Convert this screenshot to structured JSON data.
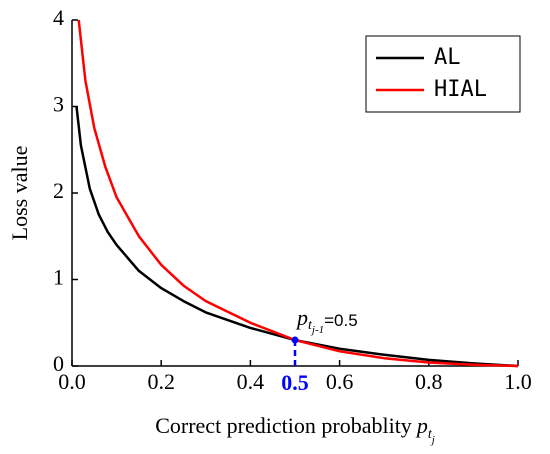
{
  "chart_data": {
    "type": "line",
    "xlabel": {
      "text": "Correct prediction probablity",
      "symbol": "p",
      "sub": "t",
      "subsub": "j"
    },
    "ylabel": "Loss value",
    "xlim": [
      0,
      1
    ],
    "ylim": [
      0,
      4
    ],
    "xticks": [
      {
        "value": 0,
        "label": "0.0"
      },
      0.2,
      0.4,
      0.6,
      0.8,
      {
        "value": 1,
        "label": "1.0"
      }
    ],
    "yticks": [
      0,
      1,
      2,
      3,
      4
    ],
    "legend": "top-right",
    "series": [
      {
        "name": "AL",
        "color": "#000000",
        "x": [
          0.01,
          0.02,
          0.04,
          0.06,
          0.08,
          0.1,
          0.15,
          0.2,
          0.25,
          0.3,
          0.4,
          0.5,
          0.6,
          0.7,
          0.8,
          0.9,
          1.0
        ],
        "values": [
          3,
          2.55,
          2.05,
          1.75,
          1.55,
          1.4,
          1.1,
          0.9,
          0.75,
          0.62,
          0.44,
          0.3,
          0.2,
          0.13,
          0.07,
          0.03,
          0
        ]
      },
      {
        "name": "HIAL",
        "color": "#ff0000",
        "x": [
          0.015,
          0.03,
          0.05,
          0.075,
          0.1,
          0.15,
          0.2,
          0.25,
          0.3,
          0.4,
          0.5,
          0.6,
          0.7,
          0.8,
          0.9,
          1.0
        ],
        "values": [
          4,
          3.3,
          2.75,
          2.3,
          1.95,
          1.5,
          1.17,
          0.93,
          0.75,
          0.5,
          0.3,
          0.17,
          0.09,
          0.04,
          0.015,
          0
        ]
      }
    ],
    "annotation": {
      "symbol": "p",
      "sub": "t",
      "subsub": "j-1",
      "text": "=0.5",
      "x": 0.5,
      "y": 0.3,
      "x_label": "0.5",
      "color": "#0000ff"
    }
  }
}
